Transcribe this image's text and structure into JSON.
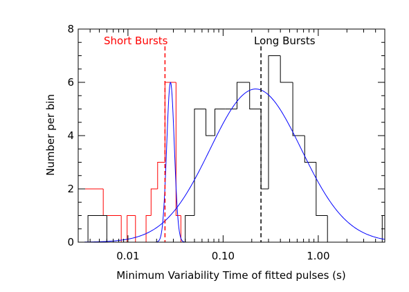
{
  "chart_data": {
    "type": "histogram",
    "x_scale": "log",
    "xlim": [
      0.003,
      5.0
    ],
    "ylim": [
      0,
      8
    ],
    "xlabel": "Minimum Variability Time of fitted pulses (s)",
    "ylabel": "Number per bin",
    "x_ticks": [
      {
        "value": 0.01,
        "label": "0.01"
      },
      {
        "value": 0.1,
        "label": "0.10"
      },
      {
        "value": 1.0,
        "label": "1.00"
      }
    ],
    "y_ticks": [
      {
        "value": 0,
        "label": "0"
      },
      {
        "value": 2,
        "label": "2"
      },
      {
        "value": 4,
        "label": "4"
      },
      {
        "value": 6,
        "label": "6"
      },
      {
        "value": 8,
        "label": "8"
      }
    ],
    "grid": false,
    "series": [
      {
        "name": "Short Bursts",
        "kind": "step",
        "color": "#ff0000",
        "edges": [
          0.003,
          0.0055,
          0.0085,
          0.0098,
          0.012,
          0.0155,
          0.0175,
          0.0205,
          0.0245,
          0.032,
          0.036
        ],
        "counts": [
          2,
          1,
          0,
          1,
          0,
          1,
          2,
          3,
          6,
          1
        ]
      },
      {
        "name": "Long Bursts",
        "kind": "step",
        "color": "#000000",
        "edges": [
          0.0038,
          0.006,
          0.0075,
          0.02,
          0.0245,
          0.0325,
          0.04,
          0.05,
          0.066,
          0.082,
          0.105,
          0.14,
          0.19,
          0.25,
          0.3,
          0.4,
          0.54,
          0.72,
          0.95,
          1.25,
          1.6,
          4.7,
          5.0
        ],
        "counts": [
          1,
          0,
          0,
          0,
          0,
          0,
          1,
          5,
          4,
          5,
          5,
          6,
          5,
          2,
          7,
          6,
          4,
          3,
          1,
          0,
          0,
          1
        ]
      },
      {
        "name": "",
        "kind": "curve",
        "color": "#0000ff",
        "components": [
          {
            "peak": 6.0,
            "center": 0.028,
            "log_sigma": 0.04,
            "x_range": [
              0.0035,
              0.05
            ]
          },
          {
            "peak": 5.75,
            "center": 0.22,
            "log_sigma": 0.48,
            "x_range": [
              0.0035,
              5.0
            ]
          }
        ]
      }
    ],
    "vlines": [
      {
        "x": 0.0245,
        "color": "#ff0000",
        "style": "dashed"
      },
      {
        "x": 0.25,
        "color": "#000000",
        "style": "dashed"
      }
    ],
    "annotations": [
      {
        "text": "Short Bursts",
        "color": "#ff0000"
      },
      {
        "text": "Long Bursts",
        "color": "#000000"
      }
    ]
  }
}
